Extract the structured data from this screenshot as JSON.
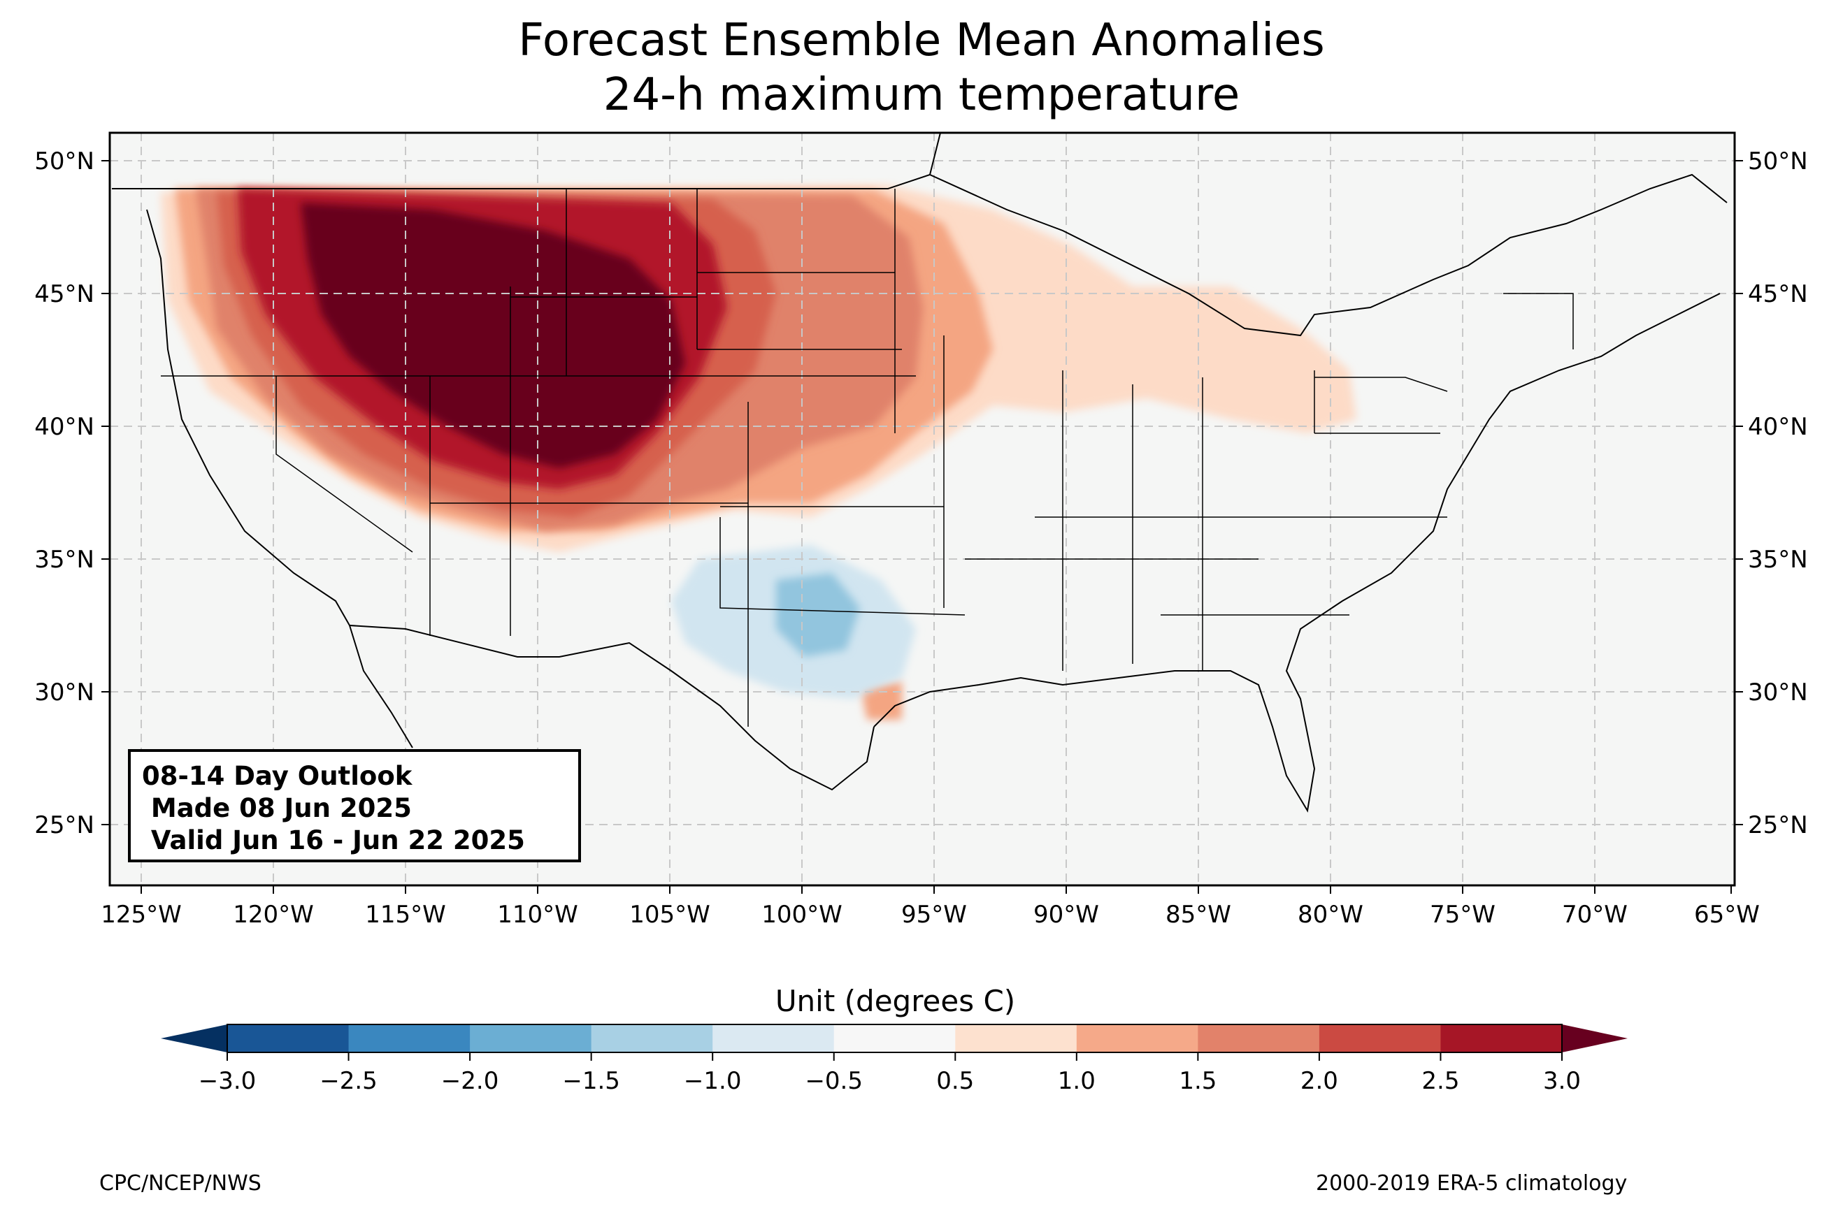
{
  "title": {
    "line1": "Forecast Ensemble Mean Anomalies",
    "line2": "24-h maximum temperature"
  },
  "outlook": {
    "line1": "08-14 Day Outlook",
    "line2": " Made 08 Jun 2025",
    "line3": " Valid Jun 16 - Jun 22 2025"
  },
  "map": {
    "lon_range": [
      -126.3,
      -65
    ],
    "lat_range": [
      22.8,
      51.2
    ],
    "lon_ticks": [
      "125°W",
      "120°W",
      "115°W",
      "110°W",
      "105°W",
      "100°W",
      "95°W",
      "90°W",
      "85°W",
      "80°W",
      "75°W",
      "70°W",
      "65°W"
    ],
    "lat_ticks": [
      "25°N",
      "30°N",
      "35°N",
      "40°N",
      "45°N",
      "50°N"
    ],
    "gridlines": true,
    "background_color": "#f5f6f5",
    "anomaly_regions": [
      {
        "level": "0.5 to 1.0",
        "color": "#fddbc7",
        "area": "Upper Midwest / Great Lakes / Ohio Valley"
      },
      {
        "level": "1.0 to 1.5",
        "color": "#f4a582",
        "area": "Northern Plains and West Coast margin"
      },
      {
        "level": "1.5 to 2.0",
        "color": "#e0826a",
        "area": "Central Plains / Southwest"
      },
      {
        "level": "2.0 to 2.5",
        "color": "#d6604d",
        "area": "Intermountain West"
      },
      {
        "level": "2.5 to 3.0",
        "color": "#b2182b",
        "area": "Great Basin / Northern Rockies"
      },
      {
        "level": "> 3.0",
        "color": "#67001f",
        "area": "Northern and Central Rockies"
      },
      {
        "level": "-0.5 to -1.0",
        "color": "#d1e5f0",
        "area": "Texas / Southern Plains"
      },
      {
        "level": "-1.0 to -1.5",
        "color": "#92c5de",
        "area": "North-central Texas"
      }
    ]
  },
  "colorbar": {
    "title": "Unit (degrees C)",
    "ticks": [
      "−3.0",
      "−2.5",
      "−2.0",
      "−1.5",
      "−1.0",
      "−0.5",
      "0.5",
      "1.0",
      "1.5",
      "2.0",
      "2.5",
      "3.0"
    ],
    "colors": [
      "#195696",
      "#3a87bf",
      "#6baed3",
      "#a8d0e4",
      "#dbe9f2",
      "#f7f7f7",
      "#fde1cf",
      "#f5a989",
      "#e2826a",
      "#cb4a42",
      "#a61626"
    ],
    "extend_low_color": "#053061",
    "extend_high_color": "#67001f"
  },
  "footer": {
    "left": "CPC/NCEP/NWS",
    "right": "2000-2019 ERA-5 climatology"
  }
}
